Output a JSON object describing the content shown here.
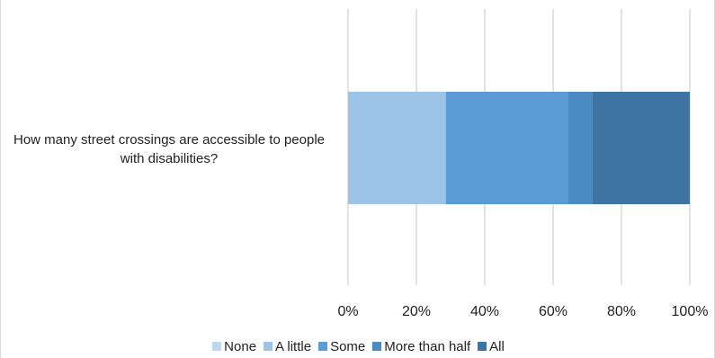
{
  "chart_data": {
    "type": "bar",
    "orientation": "horizontal",
    "stacked": true,
    "percent": true,
    "categories": [
      "How many street crossings are accessible to people with disabilities?"
    ],
    "series": [
      {
        "name": "None",
        "values": [
          0
        ],
        "color": "#bdd7ee"
      },
      {
        "name": "A little",
        "values": [
          28.6
        ],
        "color": "#9dc3e6"
      },
      {
        "name": "Some",
        "values": [
          35.7
        ],
        "color": "#5b9bd5"
      },
      {
        "name": "More than half",
        "values": [
          7.1
        ],
        "color": "#4a8bc4"
      },
      {
        "name": "All",
        "values": [
          28.6
        ],
        "color": "#3d74a3"
      }
    ],
    "xlim": [
      0,
      100
    ],
    "x_ticks": [
      "0%",
      "20%",
      "40%",
      "60%",
      "80%",
      "100%"
    ],
    "grid": true,
    "legend_position": "bottom"
  }
}
